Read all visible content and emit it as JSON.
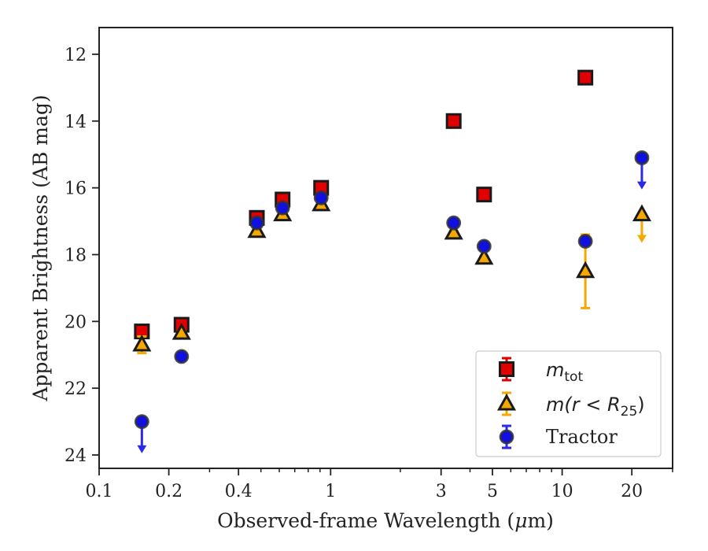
{
  "chart_data": {
    "type": "scatter",
    "xscale": "log",
    "yinverted": true,
    "xlim": [
      0.1,
      30
    ],
    "ylim": [
      11.2,
      24.4
    ],
    "xlabel": "Observed-frame Wavelength (",
    "xlabel_unit_mu": "μ",
    "xlabel_unit_rest": "m)",
    "ylabel": "Apparent Brightness (AB mag)",
    "xticks": [
      {
        "value": 0.1,
        "label": "0.1"
      },
      {
        "value": 0.2,
        "label": "0.2"
      },
      {
        "value": 0.4,
        "label": "0.4"
      },
      {
        "value": 1,
        "label": "1"
      },
      {
        "value": 3,
        "label": "3"
      },
      {
        "value": 5,
        "label": "5"
      },
      {
        "value": 10,
        "label": "10"
      },
      {
        "value": 20,
        "label": "20"
      }
    ],
    "yticks": [
      {
        "value": 12,
        "label": "12"
      },
      {
        "value": 14,
        "label": "14"
      },
      {
        "value": 16,
        "label": "16"
      },
      {
        "value": 18,
        "label": "18"
      },
      {
        "value": 20,
        "label": "20"
      },
      {
        "value": 22,
        "label": "22"
      },
      {
        "value": 24,
        "label": "24"
      }
    ],
    "legend": {
      "position": "lower-right",
      "entries": [
        {
          "series": "mtot",
          "label_main": "m",
          "label_sub": "tot"
        },
        {
          "series": "mr25",
          "label_main": "m(r < R",
          "label_sub": "25",
          "label_end": ")"
        },
        {
          "series": "tractor",
          "label_main": "Tractor"
        }
      ]
    },
    "series": [
      {
        "id": "mtot",
        "marker": "square",
        "face_color": "#e00000",
        "edge_color": "#1a1a1a",
        "err_color": "#e00000",
        "points": [
          {
            "x": 0.153,
            "y": 20.3,
            "err": 0.1
          },
          {
            "x": 0.227,
            "y": 20.1,
            "err": 0.1
          },
          {
            "x": 0.48,
            "y": 16.9,
            "err": 0.05
          },
          {
            "x": 0.62,
            "y": 16.35,
            "err": 0.05
          },
          {
            "x": 0.91,
            "y": 16.0,
            "err": 0.05
          },
          {
            "x": 3.4,
            "y": 14.0,
            "err": 0.05
          },
          {
            "x": 4.6,
            "y": 16.2,
            "err": 0.05
          },
          {
            "x": 12.6,
            "y": 12.7,
            "err": 0.05
          }
        ]
      },
      {
        "id": "mr25",
        "marker": "triangle",
        "face_color": "#f5a800",
        "edge_color": "#1a1a1a",
        "err_color": "#f5a800",
        "points": [
          {
            "x": 0.153,
            "y": 20.7,
            "err": 0.25
          },
          {
            "x": 0.227,
            "y": 20.35,
            "err": 0.05
          },
          {
            "x": 0.48,
            "y": 17.3,
            "err": 0.05
          },
          {
            "x": 0.62,
            "y": 16.8,
            "err": 0.05
          },
          {
            "x": 0.91,
            "y": 16.5,
            "err": 0.05
          },
          {
            "x": 3.4,
            "y": 17.35,
            "err": 0.05
          },
          {
            "x": 4.6,
            "y": 18.1,
            "err": 0.05
          },
          {
            "x": 12.6,
            "y": 18.5,
            "err": 1.1
          },
          {
            "x": 22.1,
            "y": 16.8,
            "upper_limit": true,
            "arrow_to": 17.6
          }
        ]
      },
      {
        "id": "tractor",
        "marker": "circle",
        "face_color": "#1010e0",
        "edge_color": "#333333",
        "err_color": "#2a2ae8",
        "points": [
          {
            "x": 0.153,
            "y": 23.0,
            "upper_limit": true,
            "arrow_to": 23.9
          },
          {
            "x": 0.227,
            "y": 21.05,
            "err": 0.05
          },
          {
            "x": 0.48,
            "y": 17.05,
            "err": 0.05
          },
          {
            "x": 0.62,
            "y": 16.6,
            "err": 0.05
          },
          {
            "x": 0.91,
            "y": 16.3,
            "err": 0.05
          },
          {
            "x": 3.4,
            "y": 17.05,
            "err": 0.05
          },
          {
            "x": 4.6,
            "y": 17.75,
            "err": 0.05
          },
          {
            "x": 12.6,
            "y": 17.6,
            "err": 0.05
          },
          {
            "x": 22.1,
            "y": 15.1,
            "upper_limit": true,
            "arrow_to": 16.0
          }
        ]
      }
    ]
  }
}
